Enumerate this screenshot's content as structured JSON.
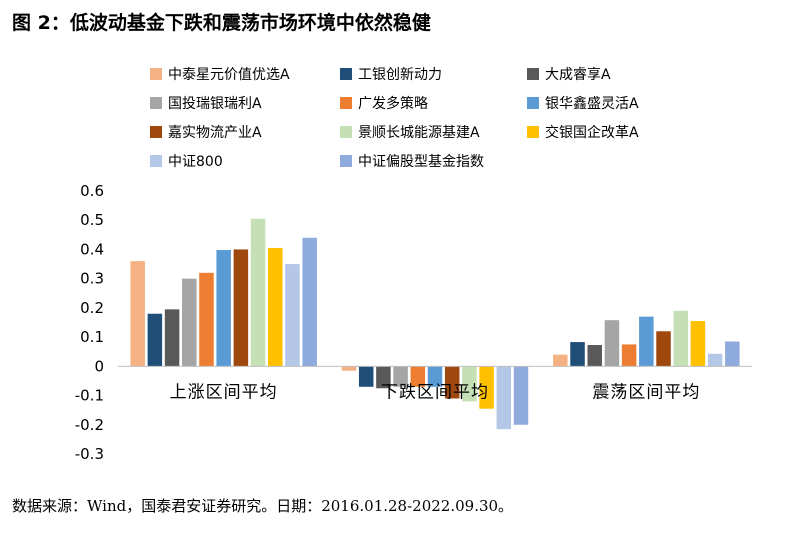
{
  "figure": {
    "title": "图 2：低波动基金下跌和震荡市场环境中依然稳健",
    "source": "数据来源：Wind，国泰君安证券研究。日期：2016.01.28-2022.09.30。"
  },
  "chart_data": {
    "type": "bar",
    "title": "",
    "xlabel": "",
    "ylabel": "",
    "ylim": [
      -0.3,
      0.6
    ],
    "yticks": [
      0.6,
      0.5,
      0.4,
      0.3,
      0.2,
      0.1,
      0,
      -0.1,
      -0.2,
      -0.3
    ],
    "ytick_labels": [
      "0.6",
      "0.5",
      "0.4",
      "0.3",
      "0.2",
      "0.1",
      "0",
      "-0.1",
      "-0.2",
      "-0.3"
    ],
    "grid": false,
    "legend_position": "top",
    "categories": [
      "上涨区间平均",
      "下跌区间平均",
      "震荡区间平均"
    ],
    "series": [
      {
        "name": "中泰星元价值优选A",
        "color": "#F4B183",
        "values": [
          0.36,
          -0.015,
          0.04
        ]
      },
      {
        "name": "工银创新动力",
        "color": "#1F4E79",
        "values": [
          0.18,
          -0.07,
          0.083
        ]
      },
      {
        "name": "大成睿享A",
        "color": "#595959",
        "values": [
          0.195,
          -0.075,
          0.073
        ]
      },
      {
        "name": "国投瑞银瑞利A",
        "color": "#A5A5A5",
        "values": [
          0.3,
          -0.07,
          0.158
        ]
      },
      {
        "name": "广发多策略",
        "color": "#ED7D31",
        "values": [
          0.32,
          -0.07,
          0.075
        ]
      },
      {
        "name": "银华鑫盛灵活A",
        "color": "#5B9BD5",
        "values": [
          0.398,
          -0.07,
          0.17
        ]
      },
      {
        "name": "嘉实物流产业A",
        "color": "#9E480E",
        "values": [
          0.4,
          -0.11,
          0.12
        ]
      },
      {
        "name": "景顺长城能源基建A",
        "color": "#C5E0B4",
        "values": [
          0.505,
          -0.12,
          0.19
        ]
      },
      {
        "name": "交银国企改革A",
        "color": "#FFC000",
        "values": [
          0.405,
          -0.145,
          0.155
        ]
      },
      {
        "name": "中证800",
        "color": "#B4C7E7",
        "values": [
          0.35,
          -0.215,
          0.043
        ]
      },
      {
        "name": "中证偏股型基金指数",
        "color": "#8FAADC",
        "values": [
          0.44,
          -0.2,
          0.085
        ]
      }
    ]
  }
}
